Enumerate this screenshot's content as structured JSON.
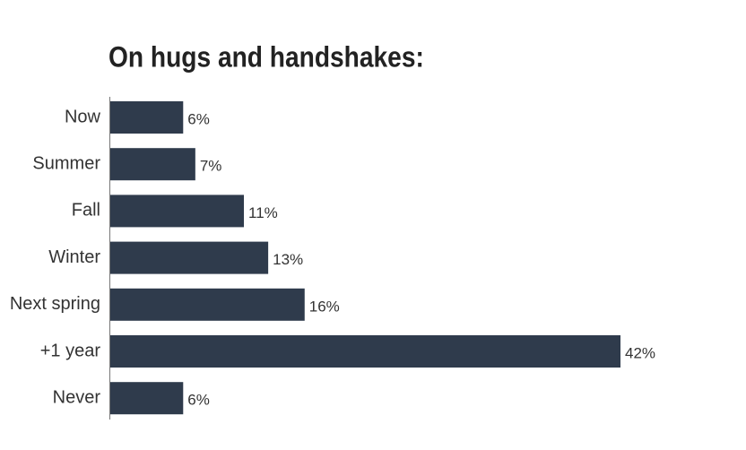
{
  "chart_data": {
    "type": "bar",
    "orientation": "horizontal",
    "title": "On hugs and handshakes:",
    "categories": [
      "Now",
      "Summer",
      "Fall",
      "Winter",
      "Next spring",
      "+1 year",
      "Never"
    ],
    "values": [
      6,
      7,
      11,
      13,
      16,
      42,
      6
    ],
    "value_labels": [
      "6%",
      "7%",
      "11%",
      "13%",
      "16%",
      "42%",
      "6%"
    ],
    "color": "#2f3b4c"
  }
}
